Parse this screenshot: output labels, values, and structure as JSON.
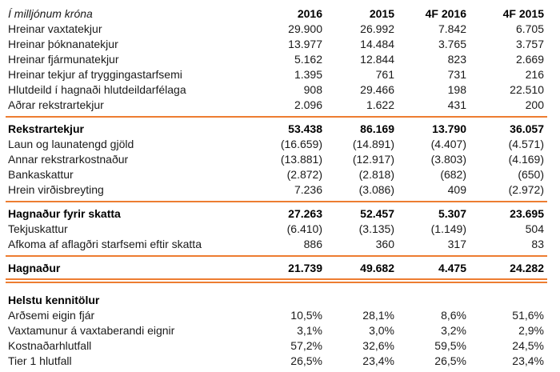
{
  "table": {
    "unit_label": "Í milljónum króna",
    "columns": [
      "2016",
      "2015",
      "4F 2016",
      "4F 2015"
    ],
    "accent_color": "#ED7D31",
    "sections": [
      {
        "rows": [
          {
            "label": "Hreinar vaxtatekjur",
            "values": [
              "29.900",
              "26.992",
              "7.842",
              "6.705"
            ]
          },
          {
            "label": "Hreinar þóknanatekjur",
            "values": [
              "13.977",
              "14.484",
              "3.765",
              "3.757"
            ]
          },
          {
            "label": "Hreinar fjármunatekjur",
            "values": [
              "5.162",
              "12.844",
              "823",
              "2.669"
            ]
          },
          {
            "label": "Hreinar tekjur af tryggingastarfsemi",
            "values": [
              "1.395",
              "761",
              "731",
              "216"
            ]
          },
          {
            "label": "Hlutdeild í hagnaði hlutdeildarfélaga",
            "values": [
              "908",
              "29.466",
              "198",
              "22.510"
            ]
          },
          {
            "label": "Aðrar rekstrartekjur",
            "values": [
              "2.096",
              "1.622",
              "431",
              "200"
            ]
          }
        ]
      },
      {
        "divider_before": "single",
        "rows": [
          {
            "label": "Rekstrartekjur",
            "bold": true,
            "values": [
              "53.438",
              "86.169",
              "13.790",
              "36.057"
            ]
          },
          {
            "label": "Laun og launatengd gjöld",
            "values": [
              "(16.659)",
              "(14.891)",
              "(4.407)",
              "(4.571)"
            ]
          },
          {
            "label": "Annar rekstrarkostnaður",
            "values": [
              "(13.881)",
              "(12.917)",
              "(3.803)",
              "(4.169)"
            ]
          },
          {
            "label": "Bankaskattur",
            "values": [
              "(2.872)",
              "(2.818)",
              "(682)",
              "(650)"
            ]
          },
          {
            "label": "Hrein virðisbreyting",
            "values": [
              "7.236",
              "(3.086)",
              "409",
              "(2.972)"
            ]
          }
        ]
      },
      {
        "divider_before": "single",
        "rows": [
          {
            "label": "Hagnaður fyrir skatta",
            "bold": true,
            "values": [
              "27.263",
              "52.457",
              "5.307",
              "23.695"
            ]
          },
          {
            "label": "Tekjuskattur",
            "values": [
              "(6.410)",
              "(3.135)",
              "(1.149)",
              "504"
            ]
          },
          {
            "label": "Afkoma af aflagðri starfsemi eftir skatta",
            "values": [
              "886",
              "360",
              "317",
              "83"
            ]
          }
        ]
      },
      {
        "divider_before": "single",
        "divider_after": "double",
        "rows": [
          {
            "label": "Hagnaður",
            "bold": true,
            "values": [
              "21.739",
              "49.682",
              "4.475",
              "24.282"
            ]
          }
        ]
      },
      {
        "gap_before": true,
        "rows": [
          {
            "label": "Helstu kennitölur",
            "bold": true,
            "values": [
              "",
              "",
              "",
              ""
            ]
          },
          {
            "label": "Arðsemi eigin fjár",
            "values": [
              "10,5%",
              "28,1%",
              "8,6%",
              "51,6%"
            ]
          },
          {
            "label": "Vaxtamunur á vaxtaberandi eignir",
            "values": [
              "3,1%",
              "3,0%",
              "3,2%",
              "2,9%"
            ]
          },
          {
            "label": "Kostnaðarhlutfall",
            "values": [
              "57,2%",
              "32,6%",
              "59,5%",
              "24,5%"
            ]
          },
          {
            "label": "Tier 1 hlutfall",
            "values": [
              "26,5%",
              "23,4%",
              "26,5%",
              "23,4%"
            ]
          }
        ]
      }
    ]
  }
}
